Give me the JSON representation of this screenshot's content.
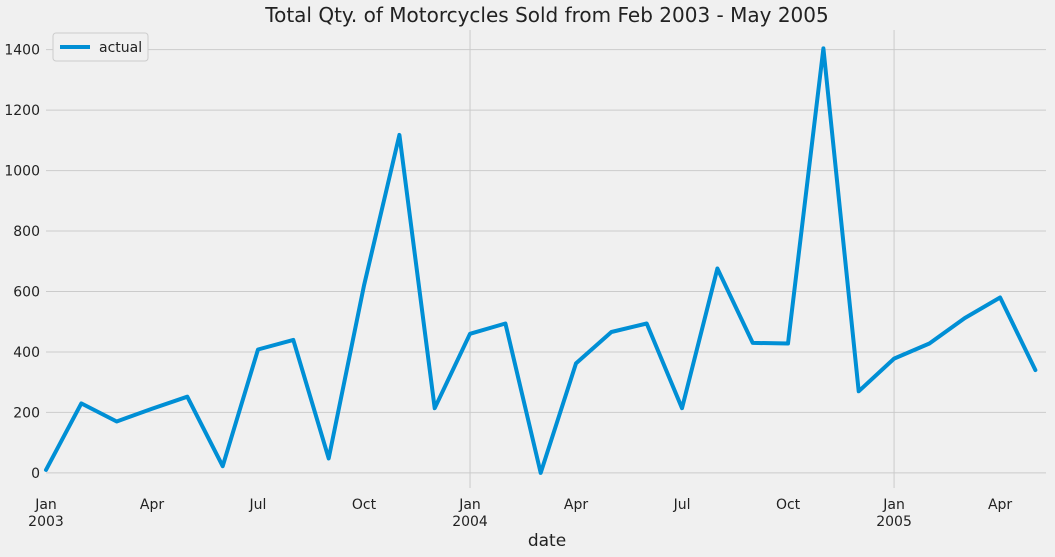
{
  "chart_data": {
    "type": "line",
    "title": "Total Qty. of Motorcycles Sold from Feb 2003 - May 2005",
    "xlabel": "date",
    "ylabel": "",
    "x": [
      "2003-01",
      "2003-02",
      "2003-03",
      "2003-04",
      "2003-05",
      "2003-06",
      "2003-07",
      "2003-08",
      "2003-09",
      "2003-10",
      "2003-11",
      "2003-12",
      "2004-01",
      "2004-02",
      "2004-03",
      "2004-04",
      "2004-05",
      "2004-06",
      "2004-07",
      "2004-08",
      "2004-09",
      "2004-10",
      "2004-11",
      "2004-12",
      "2005-01",
      "2005-02",
      "2005-03",
      "2005-04",
      "2005-05"
    ],
    "series": [
      {
        "name": "actual",
        "color": "#008fd5",
        "values": [
          10,
          230,
          170,
          212,
          252,
          22,
          408,
          440,
          48,
          620,
          1118,
          214,
          460,
          494,
          0,
          362,
          466,
          494,
          214,
          676,
          430,
          428,
          1404,
          270,
          378,
          428,
          512,
          580,
          340
        ]
      }
    ],
    "ylim": [
      -50,
      1465
    ],
    "yticks": [
      0,
      200,
      400,
      600,
      800,
      1000,
      1200,
      1400
    ],
    "xticks": [
      {
        "index": 0,
        "label": "Jan",
        "year": "2003"
      },
      {
        "index": 3,
        "label": "Apr",
        "year": ""
      },
      {
        "index": 6,
        "label": "Jul",
        "year": ""
      },
      {
        "index": 9,
        "label": "Oct",
        "year": ""
      },
      {
        "index": 12,
        "label": "Jan",
        "year": "2004"
      },
      {
        "index": 15,
        "label": "Apr",
        "year": ""
      },
      {
        "index": 18,
        "label": "Jul",
        "year": ""
      },
      {
        "index": 21,
        "label": "Oct",
        "year": ""
      },
      {
        "index": 24,
        "label": "Jan",
        "year": "2005"
      },
      {
        "index": 27,
        "label": "Apr",
        "year": ""
      }
    ],
    "grid": true,
    "legend_position": "top-left",
    "colors": {
      "background": "#f0f0f0",
      "grid": "#cbcbcb",
      "text": "#222222"
    }
  }
}
